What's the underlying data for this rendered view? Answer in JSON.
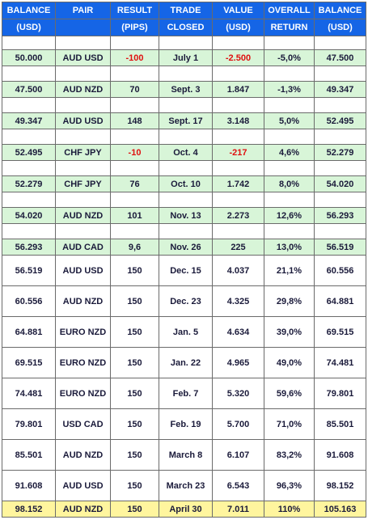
{
  "header": {
    "row1": [
      "BALANCE",
      "PAIR",
      "RESULT",
      "TRADE",
      "VALUE",
      "OVERALL",
      "BALANCE"
    ],
    "row2": [
      "(USD)",
      "",
      "(PIPS)",
      "CLOSED",
      "(USD)",
      "RETURN",
      "(USD)"
    ]
  },
  "colors": {
    "header_bg": "#1565e6",
    "header_text": "#ffffff",
    "green_row": "#d8f5d8",
    "yellow_row": "#fff59e",
    "negative": "#e01010"
  },
  "trades": [
    {
      "start": "50.000",
      "pair": "AUD USD",
      "pips": "-100",
      "closed": "July 1",
      "value": "-2.500",
      "return": "-5,0%",
      "end": "47.500"
    },
    {
      "start": "47.500",
      "pair": "AUD NZD",
      "pips": "70",
      "closed": "Sept. 3",
      "value": "1.847",
      "return": "-1,3%",
      "end": "49.347"
    },
    {
      "start": "49.347",
      "pair": "AUD USD",
      "pips": "148",
      "closed": "Sept. 17",
      "value": "3.148",
      "return": "5,0%",
      "end": "52.495"
    },
    {
      "start": "52.495",
      "pair": "CHF JPY",
      "pips": "-10",
      "closed": "Oct. 4",
      "value": "-217",
      "return": "4,6%",
      "end": "52.279"
    },
    {
      "start": "52.279",
      "pair": "CHF JPY",
      "pips": "76",
      "closed": "Oct. 10",
      "value": "1.742",
      "return": "8,0%",
      "end": "54.020"
    },
    {
      "start": "54.020",
      "pair": "AUD NZD",
      "pips": "101",
      "closed": "Nov. 13",
      "value": "2.273",
      "return": "12,6%",
      "end": "56.293"
    },
    {
      "start": "56.293",
      "pair": "AUD CAD",
      "pips": "9,6",
      "closed": "Nov. 26",
      "value": "225",
      "return": "13,0%",
      "end": "56.519"
    },
    {
      "start": "56.519",
      "pair": "AUD USD",
      "pips": "150",
      "closed": "Dec. 15",
      "value": "4.037",
      "return": "21,1%",
      "end": "60.556"
    },
    {
      "start": "60.556",
      "pair": "AUD NZD",
      "pips": "150",
      "closed": "Dec. 23",
      "value": "4.325",
      "return": "29,8%",
      "end": "64.881"
    },
    {
      "start": "64.881",
      "pair": "EURO NZD",
      "pips": "150",
      "closed": "Jan. 5",
      "value": "4.634",
      "return": "39,0%",
      "end": "69.515"
    },
    {
      "start": "69.515",
      "pair": "EURO NZD",
      "pips": "150",
      "closed": "Jan. 22",
      "value": "4.965",
      "return": "49,0%",
      "end": "74.481"
    },
    {
      "start": "74.481",
      "pair": "EURO NZD",
      "pips": "150",
      "closed": "Feb. 7",
      "value": "5.320",
      "return": "59,6%",
      "end": "79.801"
    },
    {
      "start": "79.801",
      "pair": "USD CAD",
      "pips": "150",
      "closed": "Feb. 19",
      "value": "5.700",
      "return": "71,0%",
      "end": "85.501"
    },
    {
      "start": "85.501",
      "pair": "AUD NZD",
      "pips": "150",
      "closed": "March 8",
      "value": "6.107",
      "return": "83,2%",
      "end": "91.608"
    },
    {
      "start": "91.608",
      "pair": "AUD USD",
      "pips": "150",
      "closed": "March 23",
      "value": "6.543",
      "return": "96,3%",
      "end": "98.152"
    },
    {
      "start": "98.152",
      "pair": "AUD NZD",
      "pips": "150",
      "closed": "April 30",
      "value": "7.011",
      "return": "110%",
      "end": "105.163"
    }
  ]
}
